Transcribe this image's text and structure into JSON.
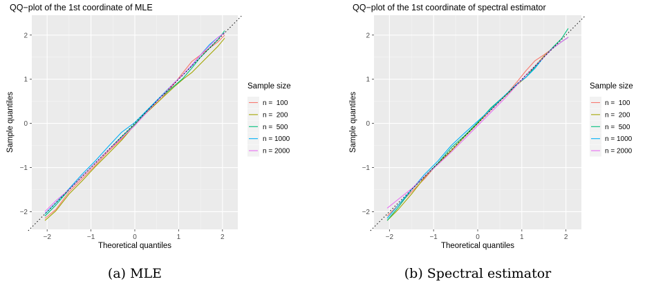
{
  "chart_data": [
    {
      "type": "line",
      "title": "QQ−plot of the 1st coordinate of MLE",
      "xlabel": "Theoretical quantiles",
      "ylabel": "Sample quantiles",
      "xlim": [
        -2.35,
        2.35
      ],
      "ylim": [
        -2.4,
        2.45
      ],
      "x_ticks": [
        -2,
        -1,
        0,
        1,
        2
      ],
      "x_tick_labels": [
        "−2",
        "−1",
        "0",
        "1",
        "2"
      ],
      "y_ticks": [
        -2,
        -1,
        0,
        1,
        2
      ],
      "y_tick_labels": [
        "−2",
        "−1",
        "0",
        "1",
        "2"
      ],
      "grid": true,
      "reference_line": "y = x (dotted)",
      "legend_title": "Sample size",
      "legend_position": "right",
      "series": [
        {
          "name": "n =  100",
          "color": "#F8766D",
          "x": [
            -2.05,
            -1.8,
            -1.5,
            -1.2,
            -0.9,
            -0.6,
            -0.3,
            0,
            0.3,
            0.6,
            0.9,
            1.1,
            1.3,
            1.5,
            1.7,
            1.9,
            2.05
          ],
          "y": [
            -2.15,
            -1.95,
            -1.55,
            -1.25,
            -0.95,
            -0.63,
            -0.35,
            -0.02,
            0.28,
            0.55,
            0.9,
            1.15,
            1.4,
            1.55,
            1.7,
            1.85,
            2.0
          ]
        },
        {
          "name": "n =  200",
          "color": "#A3A500",
          "x": [
            -2.05,
            -1.8,
            -1.5,
            -1.2,
            -0.9,
            -0.6,
            -0.3,
            0,
            0.3,
            0.6,
            0.9,
            1.1,
            1.3,
            1.5,
            1.7,
            1.9,
            2.05
          ],
          "y": [
            -2.2,
            -1.98,
            -1.6,
            -1.3,
            -0.98,
            -0.68,
            -0.38,
            -0.03,
            0.27,
            0.55,
            0.83,
            1.0,
            1.15,
            1.35,
            1.55,
            1.75,
            1.93
          ]
        },
        {
          "name": "n =  500",
          "color": "#00BF7D",
          "x": [
            -2.05,
            -1.8,
            -1.5,
            -1.2,
            -0.9,
            -0.6,
            -0.3,
            0,
            0.3,
            0.6,
            0.9,
            1.1,
            1.3,
            1.5,
            1.7,
            1.9,
            2.05
          ],
          "y": [
            -2.1,
            -1.85,
            -1.5,
            -1.2,
            -0.9,
            -0.6,
            -0.3,
            -0.02,
            0.3,
            0.6,
            0.85,
            1.02,
            1.25,
            1.5,
            1.7,
            1.9,
            2.1
          ]
        },
        {
          "name": "n = 1000",
          "color": "#00B0F6",
          "x": [
            -2.05,
            -1.8,
            -1.5,
            -1.2,
            -0.9,
            -0.6,
            -0.3,
            0,
            0.3,
            0.6,
            0.9,
            1.1,
            1.3,
            1.5,
            1.7,
            1.9,
            2.05
          ],
          "y": [
            -2.05,
            -1.8,
            -1.48,
            -1.15,
            -0.85,
            -0.52,
            -0.2,
            0.02,
            0.32,
            0.62,
            0.92,
            1.1,
            1.3,
            1.55,
            1.78,
            1.95,
            2.05
          ]
        },
        {
          "name": "n = 2000",
          "color": "#E76BF3",
          "x": [
            -2.05,
            -1.8,
            -1.5,
            -1.2,
            -0.9,
            -0.6,
            -0.3,
            0,
            0.3,
            0.6,
            0.9,
            1.1,
            1.3,
            1.5,
            1.7,
            1.9,
            2.05
          ],
          "y": [
            -2.0,
            -1.75,
            -1.5,
            -1.2,
            -0.9,
            -0.6,
            -0.33,
            -0.05,
            0.28,
            0.6,
            0.92,
            1.1,
            1.32,
            1.55,
            1.75,
            1.95,
            2.05
          ]
        }
      ]
    },
    {
      "type": "line",
      "title": "QQ−plot of the 1st coordinate of spectral estimator",
      "xlabel": "Theoretical quantiles",
      "ylabel": "Sample quantiles",
      "xlim": [
        -2.35,
        2.35
      ],
      "ylim": [
        -2.4,
        2.45
      ],
      "x_ticks": [
        -2,
        -1,
        0,
        1,
        2
      ],
      "x_tick_labels": [
        "−2",
        "−1",
        "0",
        "1",
        "2"
      ],
      "y_ticks": [
        -2,
        -1,
        0,
        1,
        2
      ],
      "y_tick_labels": [
        "−2",
        "−1",
        "0",
        "1",
        "2"
      ],
      "grid": true,
      "reference_line": "y = x (dotted)",
      "legend_title": "Sample size",
      "legend_position": "right",
      "series": [
        {
          "name": "n =  100",
          "color": "#F8766D",
          "x": [
            -2.05,
            -1.8,
            -1.5,
            -1.2,
            -0.9,
            -0.6,
            -0.3,
            0,
            0.3,
            0.6,
            0.9,
            1.1,
            1.3,
            1.5,
            1.7,
            1.9,
            2.05
          ],
          "y": [
            -2.1,
            -1.85,
            -1.55,
            -1.25,
            -0.9,
            -0.62,
            -0.3,
            0.0,
            0.3,
            0.6,
            0.95,
            1.2,
            1.42,
            1.55,
            1.7,
            1.85,
            1.95
          ]
        },
        {
          "name": "n =  200",
          "color": "#A3A500",
          "x": [
            -2.05,
            -1.8,
            -1.5,
            -1.2,
            -0.9,
            -0.6,
            -0.3,
            0,
            0.3,
            0.6,
            0.9,
            1.1,
            1.3,
            1.5,
            1.7,
            1.9,
            2.05
          ],
          "y": [
            -2.2,
            -1.95,
            -1.6,
            -1.22,
            -0.92,
            -0.62,
            -0.3,
            0.0,
            0.35,
            0.6,
            0.88,
            1.05,
            1.3,
            1.52,
            1.7,
            1.85,
            1.95
          ]
        },
        {
          "name": "n =  500",
          "color": "#00BF7D",
          "x": [
            -2.05,
            -1.8,
            -1.5,
            -1.2,
            -0.9,
            -0.6,
            -0.3,
            0,
            0.3,
            0.6,
            0.9,
            1.1,
            1.3,
            1.5,
            1.7,
            1.9,
            2.05
          ],
          "y": [
            -2.2,
            -1.9,
            -1.5,
            -1.2,
            -0.9,
            -0.55,
            -0.28,
            0.02,
            0.35,
            0.62,
            0.9,
            1.05,
            1.28,
            1.5,
            1.72,
            1.92,
            2.15
          ]
        },
        {
          "name": "n = 1000",
          "color": "#00B0F6",
          "x": [
            -2.05,
            -1.8,
            -1.5,
            -1.2,
            -0.9,
            -0.6,
            -0.3,
            0,
            0.3,
            0.6,
            0.9,
            1.1,
            1.3,
            1.5,
            1.7,
            1.9,
            2.05
          ],
          "y": [
            -2.15,
            -1.85,
            -1.5,
            -1.15,
            -0.85,
            -0.5,
            -0.22,
            0.05,
            0.32,
            0.62,
            0.9,
            1.05,
            1.25,
            1.5,
            1.7,
            1.85,
            1.95
          ]
        },
        {
          "name": "n = 2000",
          "color": "#E76BF3",
          "x": [
            -2.05,
            -1.8,
            -1.5,
            -1.2,
            -0.9,
            -0.6,
            -0.3,
            0,
            0.3,
            0.6,
            0.9,
            1.1,
            1.3,
            1.5,
            1.7,
            1.9,
            2.05
          ],
          "y": [
            -1.92,
            -1.72,
            -1.48,
            -1.2,
            -0.93,
            -0.65,
            -0.35,
            -0.05,
            0.25,
            0.55,
            0.88,
            1.1,
            1.3,
            1.5,
            1.7,
            1.85,
            1.95
          ]
        }
      ]
    }
  ],
  "captions": [
    "(a) MLE",
    "(b) Spectral estimator"
  ]
}
